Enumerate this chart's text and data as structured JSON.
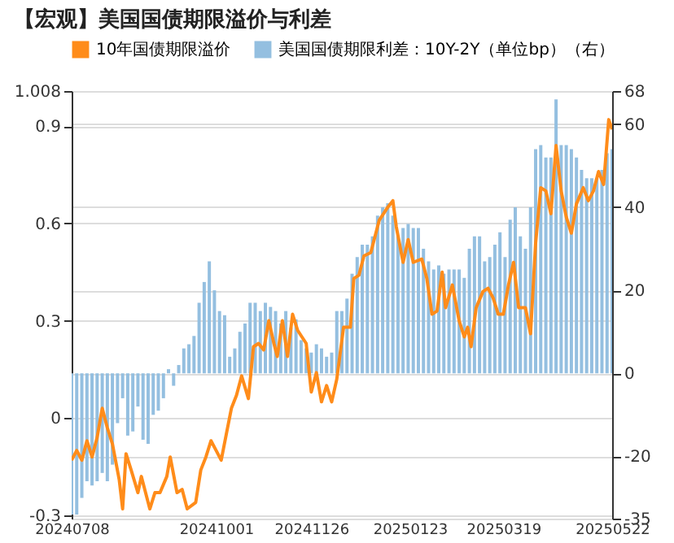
{
  "chart_data": {
    "type": "line",
    "title": "【宏观】美国国债期限溢价与利差",
    "legend": "top",
    "grid": "y",
    "xlim": [
      "2024-07-08",
      "2025-05-22"
    ],
    "xticks": [
      {
        "value": "2024-07-08",
        "label": "20240708"
      },
      {
        "value": "2024-10-01",
        "label": "20241001"
      },
      {
        "value": "2024-11-26",
        "label": "20241126"
      },
      {
        "value": "2025-01-23",
        "label": "20250123"
      },
      {
        "value": "2025-03-19",
        "label": "20250319"
      },
      {
        "value": "2025-05-22",
        "label": "20250522"
      }
    ],
    "ylim": [
      -0.31,
      1.008
    ],
    "yticks": [
      -0.3,
      0,
      0.3,
      0.6,
      0.9,
      1.008
    ],
    "y2lim": [
      -35,
      68
    ],
    "y2ticks": [
      -35,
      -20,
      0,
      20,
      40,
      60,
      68
    ],
    "series": [
      {
        "name": "美国国债期限利差：10Y-2Y（单位bp）（右）",
        "type": "bar",
        "axis": "y2",
        "color": "#94bfe0",
        "x": [
          "2024-07-08",
          "2024-07-11",
          "2024-07-14",
          "2024-07-17",
          "2024-07-20",
          "2024-07-23",
          "2024-07-26",
          "2024-07-29",
          "2024-08-01",
          "2024-08-04",
          "2024-08-07",
          "2024-08-10",
          "2024-08-13",
          "2024-08-16",
          "2024-08-19",
          "2024-08-22",
          "2024-08-25",
          "2024-08-28",
          "2024-08-31",
          "2024-09-03",
          "2024-09-06",
          "2024-09-09",
          "2024-09-12",
          "2024-09-15",
          "2024-09-18",
          "2024-09-21",
          "2024-09-24",
          "2024-09-27",
          "2024-09-30",
          "2024-10-03",
          "2024-10-06",
          "2024-10-09",
          "2024-10-12",
          "2024-10-15",
          "2024-10-18",
          "2024-10-21",
          "2024-10-24",
          "2024-10-27",
          "2024-10-30",
          "2024-11-02",
          "2024-11-05",
          "2024-11-08",
          "2024-11-11",
          "2024-11-14",
          "2024-11-17",
          "2024-11-20",
          "2024-11-23",
          "2024-11-26",
          "2024-11-29",
          "2024-12-02",
          "2024-12-05",
          "2024-12-08",
          "2024-12-11",
          "2024-12-14",
          "2024-12-17",
          "2024-12-20",
          "2024-12-23",
          "2024-12-26",
          "2024-12-29",
          "2025-01-01",
          "2025-01-04",
          "2025-01-07",
          "2025-01-10",
          "2025-01-13",
          "2025-01-16",
          "2025-01-19",
          "2025-01-22",
          "2025-01-25",
          "2025-01-28",
          "2025-01-31",
          "2025-02-03",
          "2025-02-06",
          "2025-02-09",
          "2025-02-12",
          "2025-02-15",
          "2025-02-18",
          "2025-02-21",
          "2025-02-24",
          "2025-02-27",
          "2025-03-02",
          "2025-03-05",
          "2025-03-08",
          "2025-03-11",
          "2025-03-14",
          "2025-03-17",
          "2025-03-20",
          "2025-03-23",
          "2025-03-26",
          "2025-03-29",
          "2025-04-01",
          "2025-04-04",
          "2025-04-07",
          "2025-04-10",
          "2025-04-13",
          "2025-04-16",
          "2025-04-19",
          "2025-04-22",
          "2025-04-25",
          "2025-04-28",
          "2025-05-01",
          "2025-05-04",
          "2025-05-07",
          "2025-05-10",
          "2025-05-13",
          "2025-05-16",
          "2025-05-19",
          "2025-05-22"
        ],
        "values": [
          -34,
          -34,
          -30,
          -26,
          -27,
          -26,
          -24,
          -26,
          -22,
          -12,
          -6,
          -15,
          -14,
          -8,
          -16,
          -17,
          -10,
          -9,
          -6,
          1,
          -3,
          2,
          6,
          7,
          9,
          17,
          22,
          27,
          20,
          15,
          14,
          4,
          6,
          10,
          12,
          17,
          17,
          15,
          17,
          16,
          15,
          12,
          15,
          11,
          13,
          8,
          6,
          5,
          7,
          6,
          4,
          5,
          15,
          15,
          18,
          24,
          28,
          31,
          31,
          33,
          38,
          40,
          41,
          38,
          33,
          35,
          36,
          35,
          35,
          30,
          27,
          25,
          26,
          24,
          25,
          25,
          25,
          23,
          30,
          33,
          33,
          27,
          28,
          31,
          34,
          28,
          37,
          40,
          33,
          30,
          40,
          54,
          55,
          52,
          52,
          66,
          55,
          55,
          54,
          52,
          49,
          47,
          47,
          47,
          49,
          53,
          54
        ]
      },
      {
        "name": "10年国债期限溢价",
        "color": "#ff8c1a",
        "x": [
          "2024-07-08",
          "2024-07-11",
          "2024-07-14",
          "2024-07-17",
          "2024-07-20",
          "2024-07-23",
          "2024-07-26",
          "2024-07-29",
          "2024-08-01",
          "2024-08-05",
          "2024-08-07",
          "2024-08-09",
          "2024-08-12",
          "2024-08-16",
          "2024-08-18",
          "2024-08-23",
          "2024-08-26",
          "2024-08-29",
          "2024-09-02",
          "2024-09-04",
          "2024-09-08",
          "2024-09-11",
          "2024-09-14",
          "2024-09-19",
          "2024-09-22",
          "2024-09-25",
          "2024-09-28",
          "2024-10-01",
          "2024-10-04",
          "2024-10-07",
          "2024-10-10",
          "2024-10-13",
          "2024-10-16",
          "2024-10-20",
          "2024-10-23",
          "2024-10-26",
          "2024-10-29",
          "2024-11-01",
          "2024-11-04",
          "2024-11-06",
          "2024-11-09",
          "2024-11-12",
          "2024-11-15",
          "2024-11-18",
          "2024-11-23",
          "2024-11-26",
          "2024-11-29",
          "2024-12-02",
          "2024-12-05",
          "2024-12-08",
          "2024-12-11",
          "2024-12-15",
          "2024-12-19",
          "2024-12-21",
          "2024-12-24",
          "2024-12-27",
          "2024-12-31",
          "2025-01-05",
          "2025-01-10",
          "2025-01-13",
          "2025-01-15",
          "2025-01-19",
          "2025-01-22",
          "2025-01-25",
          "2025-01-30",
          "2025-02-02",
          "2025-02-05",
          "2025-02-08",
          "2025-02-11",
          "2025-02-13",
          "2025-02-17",
          "2025-02-21",
          "2025-02-24",
          "2025-02-26",
          "2025-02-28",
          "2025-03-03",
          "2025-03-07",
          "2025-03-10",
          "2025-03-13",
          "2025-03-16",
          "2025-03-19",
          "2025-03-22",
          "2025-03-25",
          "2025-03-28",
          "2025-04-01",
          "2025-04-04",
          "2025-04-07",
          "2025-04-10",
          "2025-04-13",
          "2025-04-16",
          "2025-04-19",
          "2025-04-22",
          "2025-04-25",
          "2025-04-28",
          "2025-05-01",
          "2025-05-05",
          "2025-05-08",
          "2025-05-11",
          "2025-05-14",
          "2025-05-17",
          "2025-05-20",
          "2025-05-22"
        ],
        "values": [
          -0.13,
          -0.1,
          -0.13,
          -0.07,
          -0.12,
          -0.06,
          0.03,
          -0.03,
          -0.08,
          -0.19,
          -0.28,
          -0.11,
          -0.16,
          -0.23,
          -0.18,
          -0.28,
          -0.23,
          -0.23,
          -0.18,
          -0.12,
          -0.23,
          -0.22,
          -0.28,
          -0.26,
          -0.16,
          -0.12,
          -0.07,
          -0.1,
          -0.13,
          -0.05,
          0.03,
          0.07,
          0.13,
          0.06,
          0.22,
          0.23,
          0.21,
          0.3,
          0.23,
          0.19,
          0.3,
          0.19,
          0.32,
          0.27,
          0.23,
          0.08,
          0.14,
          0.05,
          0.1,
          0.05,
          0.12,
          0.28,
          0.28,
          0.43,
          0.44,
          0.5,
          0.51,
          0.61,
          0.65,
          0.67,
          0.59,
          0.48,
          0.55,
          0.48,
          0.49,
          0.43,
          0.32,
          0.33,
          0.45,
          0.34,
          0.41,
          0.3,
          0.25,
          0.28,
          0.22,
          0.34,
          0.39,
          0.4,
          0.37,
          0.32,
          0.32,
          0.41,
          0.48,
          0.34,
          0.34,
          0.26,
          0.54,
          0.71,
          0.7,
          0.63,
          0.84,
          0.7,
          0.62,
          0.57,
          0.66,
          0.71,
          0.67,
          0.7,
          0.76,
          0.72,
          0.92,
          0.89
        ]
      }
    ]
  }
}
